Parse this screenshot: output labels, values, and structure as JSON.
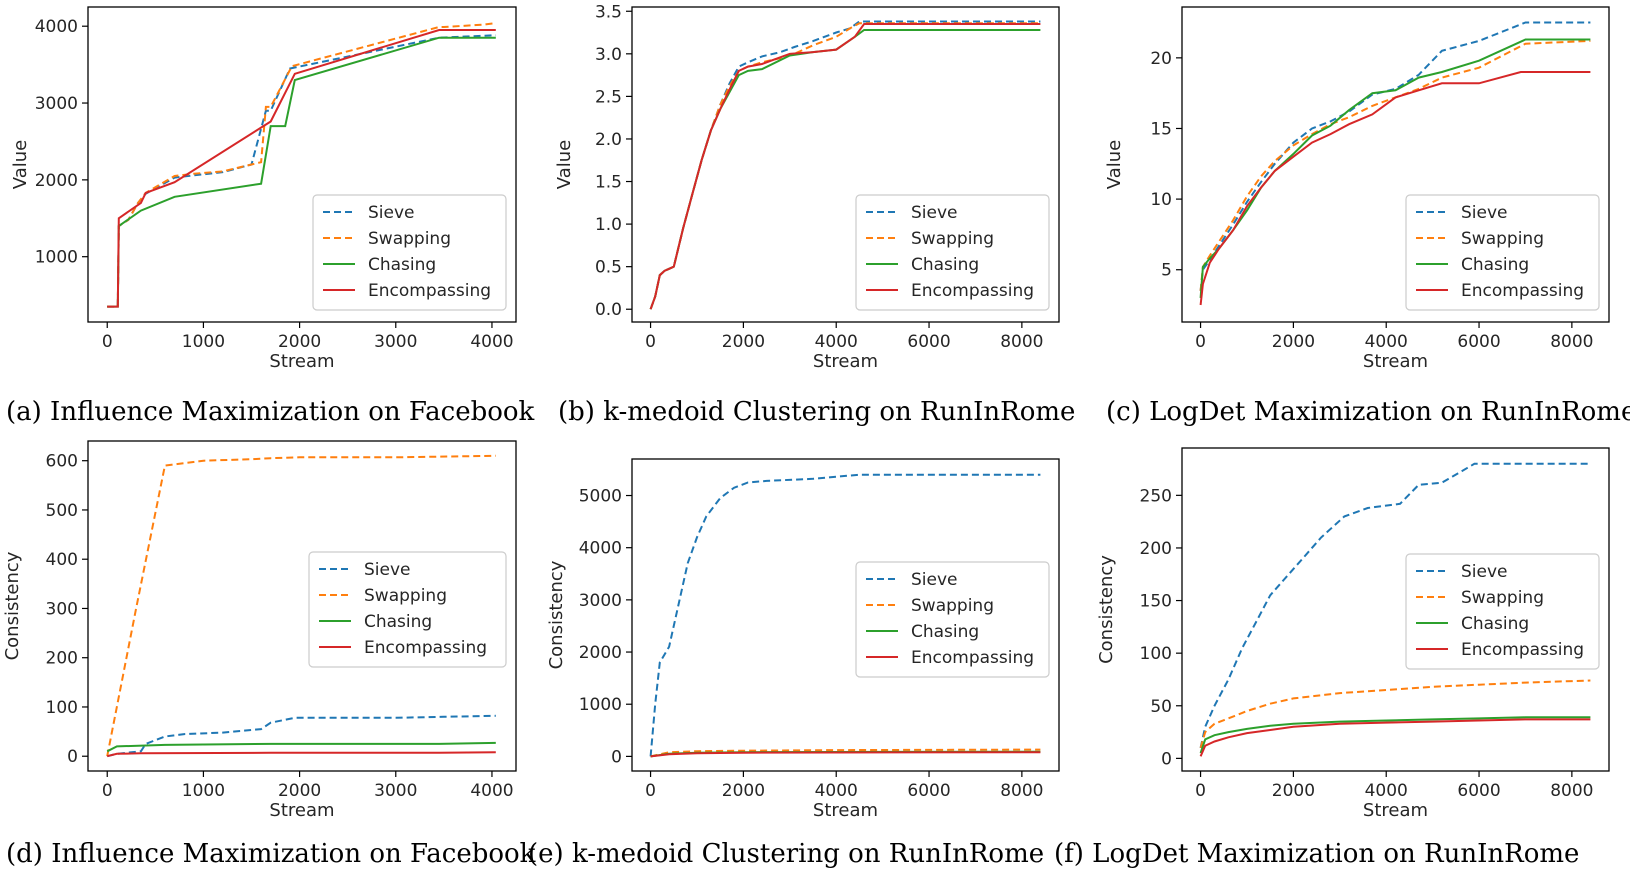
{
  "figure": {
    "colors": {
      "Sieve": "#1f77b4",
      "Swapping": "#ff7f0e",
      "Chasing": "#2ca02c",
      "Encompassing": "#d62728"
    },
    "styles": {
      "Sieve": "dashed",
      "Swapping": "dashed",
      "Chasing": "solid",
      "Encompassing": "solid"
    }
  },
  "chart_data": [
    {
      "type": "line",
      "caption": "(a) Influence Maximization on Facebook",
      "xlabel": "Stream",
      "ylabel": "Value",
      "xlim": [
        -200,
        4250
      ],
      "ylim": [
        150,
        4250
      ],
      "xticks": [
        0,
        1000,
        2000,
        3000,
        4000
      ],
      "yticks": [
        1000,
        2000,
        3000,
        4000
      ],
      "legend": [
        "Sieve",
        "Swapping",
        "Chasing",
        "Encompassing"
      ],
      "legend_position": "lower-right",
      "series": [
        {
          "name": "Sieve",
          "x": [
            0,
            110,
            120,
            220,
            320,
            400,
            700,
            900,
            1200,
            1500,
            1650,
            1700,
            1900,
            3450,
            4000,
            4040
          ],
          "y": [
            350,
            350,
            1400,
            1480,
            1700,
            1820,
            2030,
            2060,
            2100,
            2200,
            2900,
            2900,
            3450,
            3850,
            3880,
            3880
          ]
        },
        {
          "name": "Swapping",
          "x": [
            0,
            110,
            120,
            220,
            320,
            400,
            700,
            900,
            1200,
            1500,
            1600,
            1650,
            1700,
            1920,
            3450,
            3500,
            3900,
            4040
          ],
          "y": [
            350,
            350,
            1400,
            1480,
            1700,
            1830,
            2050,
            2080,
            2110,
            2200,
            2230,
            2950,
            2950,
            3480,
            3990,
            3990,
            4020,
            4040
          ]
        },
        {
          "name": "Chasing",
          "x": [
            0,
            110,
            120,
            350,
            700,
            1600,
            1700,
            1850,
            1950,
            3450,
            4040
          ],
          "y": [
            350,
            350,
            1400,
            1600,
            1780,
            1950,
            2700,
            2700,
            3300,
            3850,
            3850
          ]
        },
        {
          "name": "Encompassing",
          "x": [
            0,
            110,
            120,
            350,
            400,
            700,
            1700,
            1950,
            3450,
            4040
          ],
          "y": [
            350,
            350,
            1500,
            1700,
            1830,
            1970,
            2760,
            3380,
            3950,
            3950
          ]
        }
      ]
    },
    {
      "type": "line",
      "caption": "(b) k-medoid Clustering on RunInRome",
      "xlabel": "Stream",
      "ylabel": "Value",
      "xlim": [
        -400,
        8800
      ],
      "ylim": [
        -0.15,
        3.55
      ],
      "xticks": [
        0,
        2000,
        4000,
        6000,
        8000
      ],
      "yticks": [
        0.0,
        0.5,
        1.0,
        1.5,
        2.0,
        2.5,
        3.0,
        3.5
      ],
      "legend": [
        "Sieve",
        "Swapping",
        "Chasing",
        "Encompassing"
      ],
      "legend_position": "lower-right",
      "series": [
        {
          "name": "Sieve",
          "x": [
            0,
            100,
            200,
            300,
            500,
            700,
            900,
            1100,
            1300,
            1500,
            1700,
            1900,
            2100,
            2400,
            2800,
            3100,
            3500,
            4000,
            4300,
            4500,
            8400
          ],
          "y": [
            0,
            0.15,
            0.4,
            0.45,
            0.5,
            0.95,
            1.35,
            1.75,
            2.1,
            2.4,
            2.65,
            2.85,
            2.9,
            2.97,
            3.02,
            3.08,
            3.15,
            3.25,
            3.3,
            3.38,
            3.38
          ]
        },
        {
          "name": "Swapping",
          "x": [
            0,
            100,
            200,
            300,
            500,
            700,
            900,
            1100,
            1300,
            1500,
            1700,
            1900,
            2100,
            2400,
            2800,
            3100,
            3500,
            4000,
            4300,
            4500,
            8400
          ],
          "y": [
            0,
            0.15,
            0.4,
            0.45,
            0.5,
            0.95,
            1.35,
            1.75,
            2.1,
            2.4,
            2.62,
            2.8,
            2.85,
            2.9,
            2.95,
            3.0,
            3.1,
            3.2,
            3.3,
            3.36,
            3.36
          ]
        },
        {
          "name": "Chasing",
          "x": [
            0,
            100,
            200,
            300,
            500,
            700,
            900,
            1100,
            1300,
            1500,
            1700,
            1900,
            2100,
            2400,
            3000,
            3500,
            4000,
            4400,
            4600,
            8400
          ],
          "y": [
            0,
            0.15,
            0.4,
            0.45,
            0.5,
            0.95,
            1.35,
            1.75,
            2.1,
            2.35,
            2.55,
            2.75,
            2.8,
            2.82,
            2.98,
            3.02,
            3.05,
            3.2,
            3.28,
            3.28
          ]
        },
        {
          "name": "Encompassing",
          "x": [
            0,
            100,
            200,
            300,
            500,
            700,
            900,
            1100,
            1300,
            1500,
            1700,
            1900,
            2100,
            2400,
            3000,
            3500,
            4000,
            4400,
            4600,
            8400
          ],
          "y": [
            0,
            0.15,
            0.4,
            0.45,
            0.5,
            0.95,
            1.35,
            1.75,
            2.1,
            2.35,
            2.58,
            2.8,
            2.85,
            2.88,
            3.0,
            3.02,
            3.05,
            3.2,
            3.35,
            3.35
          ]
        }
      ]
    },
    {
      "type": "line",
      "caption": "(c) LogDet Maximization on RunInRome",
      "xlabel": "Stream",
      "ylabel": "Value",
      "xlim": [
        -400,
        8800
      ],
      "ylim": [
        1.3,
        23.6
      ],
      "xticks": [
        0,
        2000,
        4000,
        6000,
        8000
      ],
      "yticks": [
        5,
        10,
        15,
        20
      ],
      "legend": [
        "Sieve",
        "Swapping",
        "Chasing",
        "Encompassing"
      ],
      "legend_position": "lower-right",
      "series": [
        {
          "name": "Sieve",
          "x": [
            0,
            50,
            200,
            400,
            700,
            1000,
            1300,
            1600,
            2000,
            2400,
            2800,
            3200,
            3700,
            4200,
            4700,
            5200,
            6000,
            7000,
            8400
          ],
          "y": [
            3.5,
            5,
            5.7,
            6.7,
            8.2,
            9.8,
            11.2,
            12.5,
            14,
            15,
            15.5,
            16.2,
            17.4,
            17.8,
            18.8,
            20.5,
            21.2,
            22.5,
            22.5
          ]
        },
        {
          "name": "Swapping",
          "x": [
            0,
            50,
            200,
            400,
            700,
            1000,
            1300,
            1600,
            2000,
            2400,
            2800,
            3200,
            3700,
            4200,
            4700,
            5200,
            6000,
            7000,
            8400
          ],
          "y": [
            3.5,
            5.2,
            6,
            7,
            8.5,
            10.2,
            11.6,
            12.7,
            13.8,
            14.6,
            15.3,
            15.8,
            16.6,
            17.2,
            17.8,
            18.6,
            19.3,
            21,
            21.2
          ]
        },
        {
          "name": "Chasing",
          "x": [
            0,
            50,
            200,
            400,
            700,
            1000,
            1300,
            1600,
            2000,
            2400,
            2800,
            3200,
            3700,
            4200,
            4700,
            5200,
            6000,
            7000,
            8400
          ],
          "y": [
            3,
            5.2,
            5.8,
            6.5,
            7.8,
            9.2,
            10.8,
            12,
            13.2,
            14.5,
            15.2,
            16.3,
            17.5,
            17.7,
            18.6,
            19,
            19.8,
            21.3,
            21.3
          ]
        },
        {
          "name": "Encompassing",
          "x": [
            0,
            50,
            200,
            400,
            700,
            1000,
            1300,
            1600,
            2000,
            2400,
            2800,
            3200,
            3700,
            4200,
            4700,
            5200,
            6000,
            6900,
            8400
          ],
          "y": [
            2.5,
            4,
            5.5,
            6.5,
            7.8,
            9.5,
            10.8,
            12,
            13,
            14,
            14.6,
            15.3,
            16,
            17.2,
            17.7,
            18.2,
            18.2,
            19,
            19
          ]
        }
      ]
    },
    {
      "type": "line",
      "caption": "(d) Influence Maximization on Facebook",
      "xlabel": "Stream",
      "ylabel": "Consistency",
      "xlim": [
        -200,
        4250
      ],
      "ylim": [
        -30,
        640
      ],
      "xticks": [
        0,
        1000,
        2000,
        3000,
        4000
      ],
      "yticks": [
        0,
        100,
        200,
        300,
        400,
        500,
        600
      ],
      "legend": [
        "Sieve",
        "Swapping",
        "Chasing",
        "Encompassing"
      ],
      "legend_position": "center-right",
      "series": [
        {
          "name": "Sieve",
          "x": [
            0,
            100,
            350,
            400,
            600,
            800,
            1200,
            1600,
            1700,
            1950,
            3000,
            3500,
            4040
          ],
          "y": [
            0,
            5,
            10,
            25,
            40,
            45,
            48,
            55,
            68,
            78,
            78,
            80,
            82
          ]
        },
        {
          "name": "Swapping",
          "x": [
            0,
            300,
            600,
            800,
            1000,
            1500,
            1700,
            2000,
            3000,
            4040
          ],
          "y": [
            0,
            300,
            590,
            595,
            600,
            603,
            605,
            607,
            607,
            610
          ]
        },
        {
          "name": "Chasing",
          "x": [
            0,
            100,
            600,
            1700,
            3450,
            4040
          ],
          "y": [
            10,
            20,
            23,
            25,
            25,
            27
          ]
        },
        {
          "name": "Encompassing",
          "x": [
            0,
            100,
            350,
            1700,
            3450,
            4040
          ],
          "y": [
            0,
            5,
            6,
            7,
            7,
            8
          ]
        }
      ]
    },
    {
      "type": "line",
      "caption": "(e) k-medoid Clustering on RunInRome",
      "xlabel": "Stream",
      "ylabel": "Consistency",
      "xlim": [
        -400,
        8800
      ],
      "ylim": [
        -280,
        5700
      ],
      "xticks": [
        0,
        2000,
        4000,
        6000,
        8000
      ],
      "yticks": [
        0,
        1000,
        2000,
        3000,
        4000,
        5000
      ],
      "legend": [
        "Sieve",
        "Swapping",
        "Chasing",
        "Encompassing"
      ],
      "legend_position": "center-right",
      "series": [
        {
          "name": "Sieve",
          "x": [
            0,
            100,
            200,
            400,
            600,
            800,
            1000,
            1200,
            1500,
            1800,
            2100,
            2500,
            3500,
            4500,
            8400
          ],
          "y": [
            0,
            1000,
            1800,
            2100,
            2900,
            3700,
            4200,
            4600,
            4950,
            5150,
            5250,
            5280,
            5320,
            5400,
            5400
          ]
        },
        {
          "name": "Swapping",
          "x": [
            0,
            400,
            1000,
            2000,
            4000,
            8400
          ],
          "y": [
            0,
            80,
            100,
            110,
            120,
            130
          ]
        },
        {
          "name": "Chasing",
          "x": [
            0,
            400,
            1000,
            2000,
            4000,
            8400
          ],
          "y": [
            0,
            50,
            70,
            80,
            85,
            90
          ]
        },
        {
          "name": "Encompassing",
          "x": [
            0,
            400,
            1000,
            2000,
            4000,
            8400
          ],
          "y": [
            0,
            40,
            60,
            70,
            75,
            80
          ]
        }
      ]
    },
    {
      "type": "line",
      "caption": "(f) LogDet Maximization on RunInRome",
      "xlabel": "Stream",
      "ylabel": "Consistency",
      "xlim": [
        -400,
        8800
      ],
      "ylim": [
        -12,
        295
      ],
      "xticks": [
        0,
        2000,
        4000,
        6000,
        8000
      ],
      "yticks": [
        0,
        50,
        100,
        150,
        200,
        250
      ],
      "legend": [
        "Sieve",
        "Swapping",
        "Chasing",
        "Encompassing"
      ],
      "legend_position": "center-right",
      "series": [
        {
          "name": "Sieve",
          "x": [
            0,
            100,
            300,
            600,
            900,
            1200,
            1500,
            1800,
            2200,
            2600,
            3100,
            3600,
            4300,
            4700,
            5200,
            5900,
            6200,
            7000,
            8400
          ],
          "y": [
            10,
            30,
            50,
            75,
            105,
            130,
            155,
            170,
            190,
            210,
            230,
            238,
            242,
            260,
            262,
            280,
            280,
            280,
            280
          ]
        },
        {
          "name": "Swapping",
          "x": [
            0,
            100,
            300,
            600,
            1000,
            1500,
            2000,
            3000,
            4000,
            5000,
            6000,
            7000,
            8400
          ],
          "y": [
            10,
            25,
            33,
            38,
            45,
            52,
            57,
            62,
            65,
            68,
            70,
            72,
            74
          ]
        },
        {
          "name": "Chasing",
          "x": [
            0,
            100,
            300,
            600,
            1000,
            1500,
            2000,
            3000,
            4000,
            5000,
            6000,
            7000,
            8400
          ],
          "y": [
            5,
            18,
            22,
            25,
            28,
            31,
            33,
            35,
            36,
            37,
            38,
            39,
            39
          ]
        },
        {
          "name": "Encompassing",
          "x": [
            0,
            100,
            300,
            600,
            1000,
            1500,
            2000,
            3000,
            4000,
            5000,
            6000,
            7000,
            8400
          ],
          "y": [
            2,
            12,
            16,
            20,
            24,
            27,
            30,
            33,
            34,
            35,
            36,
            37,
            37
          ]
        }
      ]
    }
  ]
}
